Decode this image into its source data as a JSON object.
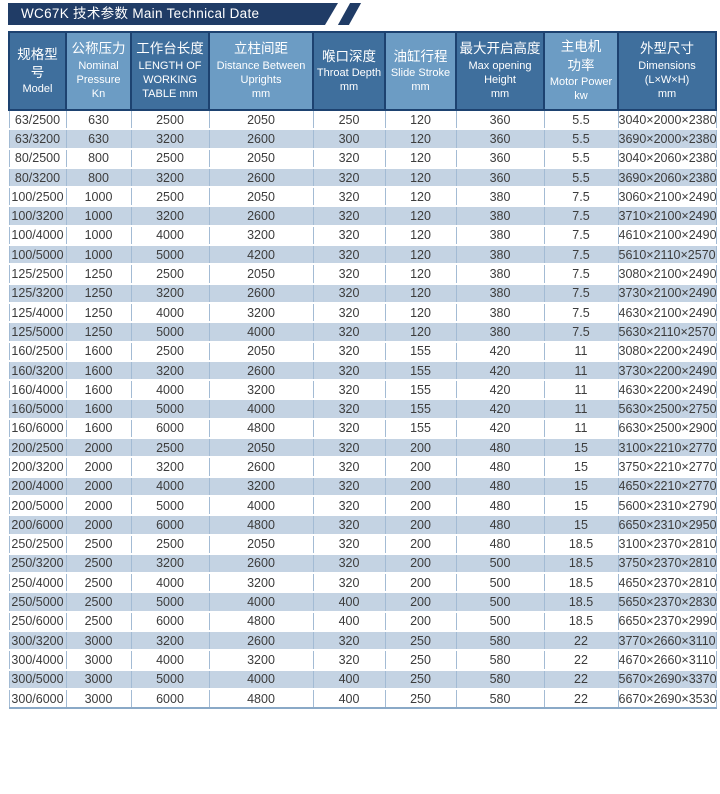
{
  "page": {
    "title": "WC67K 技术参数 Main Technical Date"
  },
  "colors": {
    "title_bar": "#203c66",
    "header_dark": "#3f6f9d",
    "header_light": "#6c9cc4",
    "row_band": "#c4d3e3",
    "row_white": "#ffffff",
    "grid_line": "#a3bbd4",
    "header_grid_line": "#1d4270",
    "data_text": "#3c3c3c"
  },
  "table": {
    "columns": [
      {
        "zh": "规格型号",
        "en": "Model",
        "unit": ""
      },
      {
        "zh": "公称压力",
        "en": "Nominal\nPressure\nKn",
        "unit": "Kn"
      },
      {
        "zh": "工作台长度",
        "en": "LENGTH OF\nWORKING\nTABLE mm",
        "unit": "mm"
      },
      {
        "zh": "立柱间距",
        "en": "Distance Between\nUprights\nmm",
        "unit": "mm"
      },
      {
        "zh": "喉口深度",
        "en": "Throat Depth\nmm",
        "unit": "mm"
      },
      {
        "zh": "油缸行程",
        "en": "Slide Stroke\nmm",
        "unit": "mm"
      },
      {
        "zh": "最大开启高度",
        "en": "Max opening\nHeight\nmm",
        "unit": "mm"
      },
      {
        "zh": "主电机\n功率",
        "en": "Motor Power\nkw",
        "unit": "kw"
      },
      {
        "zh": "外型尺寸",
        "en": "Dimensions\n(L×W×H)\nmm",
        "unit": "mm"
      }
    ],
    "rows": [
      [
        "63/2500",
        "630",
        "2500",
        "2050",
        "250",
        "120",
        "360",
        "5.5",
        "3040×2000×2380"
      ],
      [
        "63/3200",
        "630",
        "3200",
        "2600",
        "300",
        "120",
        "360",
        "5.5",
        "3690×2000×2380"
      ],
      [
        "80/2500",
        "800",
        "2500",
        "2050",
        "320",
        "120",
        "360",
        "5.5",
        "3040×2060×2380"
      ],
      [
        "80/3200",
        "800",
        "3200",
        "2600",
        "320",
        "120",
        "360",
        "5.5",
        "3690×2060×2380"
      ],
      [
        "100/2500",
        "1000",
        "2500",
        "2050",
        "320",
        "120",
        "380",
        "7.5",
        "3060×2100×2490"
      ],
      [
        "100/3200",
        "1000",
        "3200",
        "2600",
        "320",
        "120",
        "380",
        "7.5",
        "3710×2100×2490"
      ],
      [
        "100/4000",
        "1000",
        "4000",
        "3200",
        "320",
        "120",
        "380",
        "7.5",
        "4610×2100×2490"
      ],
      [
        "100/5000",
        "1000",
        "5000",
        "4200",
        "320",
        "120",
        "380",
        "7.5",
        "5610×2110×2570"
      ],
      [
        "125/2500",
        "1250",
        "2500",
        "2050",
        "320",
        "120",
        "380",
        "7.5",
        "3080×2100×2490"
      ],
      [
        "125/3200",
        "1250",
        "3200",
        "2600",
        "320",
        "120",
        "380",
        "7.5",
        "3730×2100×2490"
      ],
      [
        "125/4000",
        "1250",
        "4000",
        "3200",
        "320",
        "120",
        "380",
        "7.5",
        "4630×2100×2490"
      ],
      [
        "125/5000",
        "1250",
        "5000",
        "4000",
        "320",
        "120",
        "380",
        "7.5",
        "5630×2110×2570"
      ],
      [
        "160/2500",
        "1600",
        "2500",
        "2050",
        "320",
        "155",
        "420",
        "11",
        "3080×2200×2490"
      ],
      [
        "160/3200",
        "1600",
        "3200",
        "2600",
        "320",
        "155",
        "420",
        "11",
        "3730×2200×2490"
      ],
      [
        "160/4000",
        "1600",
        "4000",
        "3200",
        "320",
        "155",
        "420",
        "11",
        "4630×2200×2490"
      ],
      [
        "160/5000",
        "1600",
        "5000",
        "4000",
        "320",
        "155",
        "420",
        "11",
        "5630×2500×2750"
      ],
      [
        "160/6000",
        "1600",
        "6000",
        "4800",
        "320",
        "155",
        "420",
        "11",
        "6630×2500×2900"
      ],
      [
        "200/2500",
        "2000",
        "2500",
        "2050",
        "320",
        "200",
        "480",
        "15",
        "3100×2210×2770"
      ],
      [
        "200/3200",
        "2000",
        "3200",
        "2600",
        "320",
        "200",
        "480",
        "15",
        "3750×2210×2770"
      ],
      [
        "200/4000",
        "2000",
        "4000",
        "3200",
        "320",
        "200",
        "480",
        "15",
        "4650×2210×2770"
      ],
      [
        "200/5000",
        "2000",
        "5000",
        "4000",
        "320",
        "200",
        "480",
        "15",
        "5600×2310×2790"
      ],
      [
        "200/6000",
        "2000",
        "6000",
        "4800",
        "320",
        "200",
        "480",
        "15",
        "6650×2310×2950"
      ],
      [
        "250/2500",
        "2500",
        "2500",
        "2050",
        "320",
        "200",
        "480",
        "18.5",
        "3100×2370×2810"
      ],
      [
        "250/3200",
        "2500",
        "3200",
        "2600",
        "320",
        "200",
        "500",
        "18.5",
        "3750×2370×2810"
      ],
      [
        "250/4000",
        "2500",
        "4000",
        "3200",
        "320",
        "200",
        "500",
        "18.5",
        "4650×2370×2810"
      ],
      [
        "250/5000",
        "2500",
        "5000",
        "4000",
        "400",
        "200",
        "500",
        "18.5",
        "5650×2370×2830"
      ],
      [
        "250/6000",
        "2500",
        "6000",
        "4800",
        "400",
        "200",
        "500",
        "18.5",
        "6650×2370×2990"
      ],
      [
        "300/3200",
        "3000",
        "3200",
        "2600",
        "320",
        "250",
        "580",
        "22",
        "3770×2660×3110"
      ],
      [
        "300/4000",
        "3000",
        "4000",
        "3200",
        "320",
        "250",
        "580",
        "22",
        "4670×2660×3110"
      ],
      [
        "300/5000",
        "3000",
        "5000",
        "4000",
        "400",
        "250",
        "580",
        "22",
        "5670×2690×3370"
      ],
      [
        "300/6000",
        "3000",
        "6000",
        "4800",
        "400",
        "250",
        "580",
        "22",
        "6670×2690×3530"
      ]
    ]
  }
}
